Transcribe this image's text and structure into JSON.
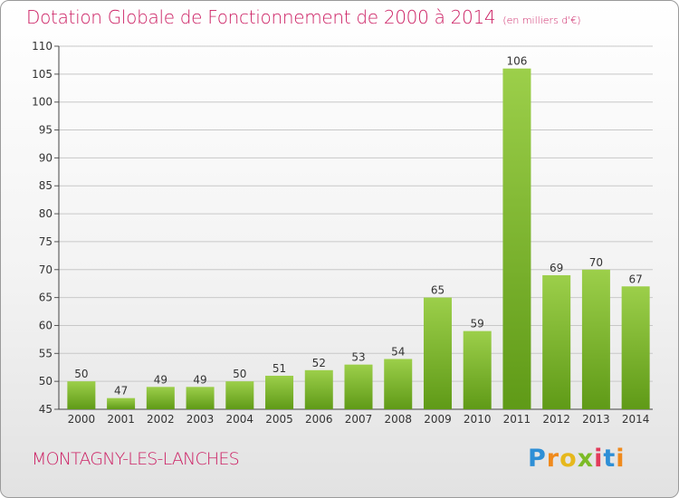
{
  "title": {
    "main": "Dotation Globale de Fonctionnement de 2000 à 2014",
    "unit": "(en milliers d'€)"
  },
  "commune": "MONTAGNY-LES-LANCHES",
  "logo": {
    "text": "Proxiti",
    "letters": [
      "P",
      "r",
      "o",
      "x",
      "i",
      "t",
      "i"
    ]
  },
  "colors": {
    "title": "#cc1f63",
    "bar_top": "#9ccf4a",
    "bar_bottom": "#5f9a17",
    "grid": "#c8c8c8"
  },
  "chart_data": {
    "type": "bar",
    "title": "Dotation Globale de Fonctionnement de 2000 à 2014",
    "subtitle": "(en milliers d'€)",
    "xlabel": "",
    "ylabel": "",
    "categories": [
      "2000",
      "2001",
      "2002",
      "2003",
      "2004",
      "2005",
      "2006",
      "2007",
      "2008",
      "2009",
      "2010",
      "2011",
      "2012",
      "2013",
      "2014"
    ],
    "values": [
      50,
      47,
      49,
      49,
      50,
      51,
      52,
      53,
      54,
      65,
      59,
      106,
      69,
      70,
      67
    ],
    "ylim": [
      45,
      110
    ],
    "yticks": [
      45,
      50,
      55,
      60,
      65,
      70,
      75,
      80,
      85,
      90,
      95,
      100,
      105,
      110
    ],
    "grid": true,
    "legend": "none"
  }
}
